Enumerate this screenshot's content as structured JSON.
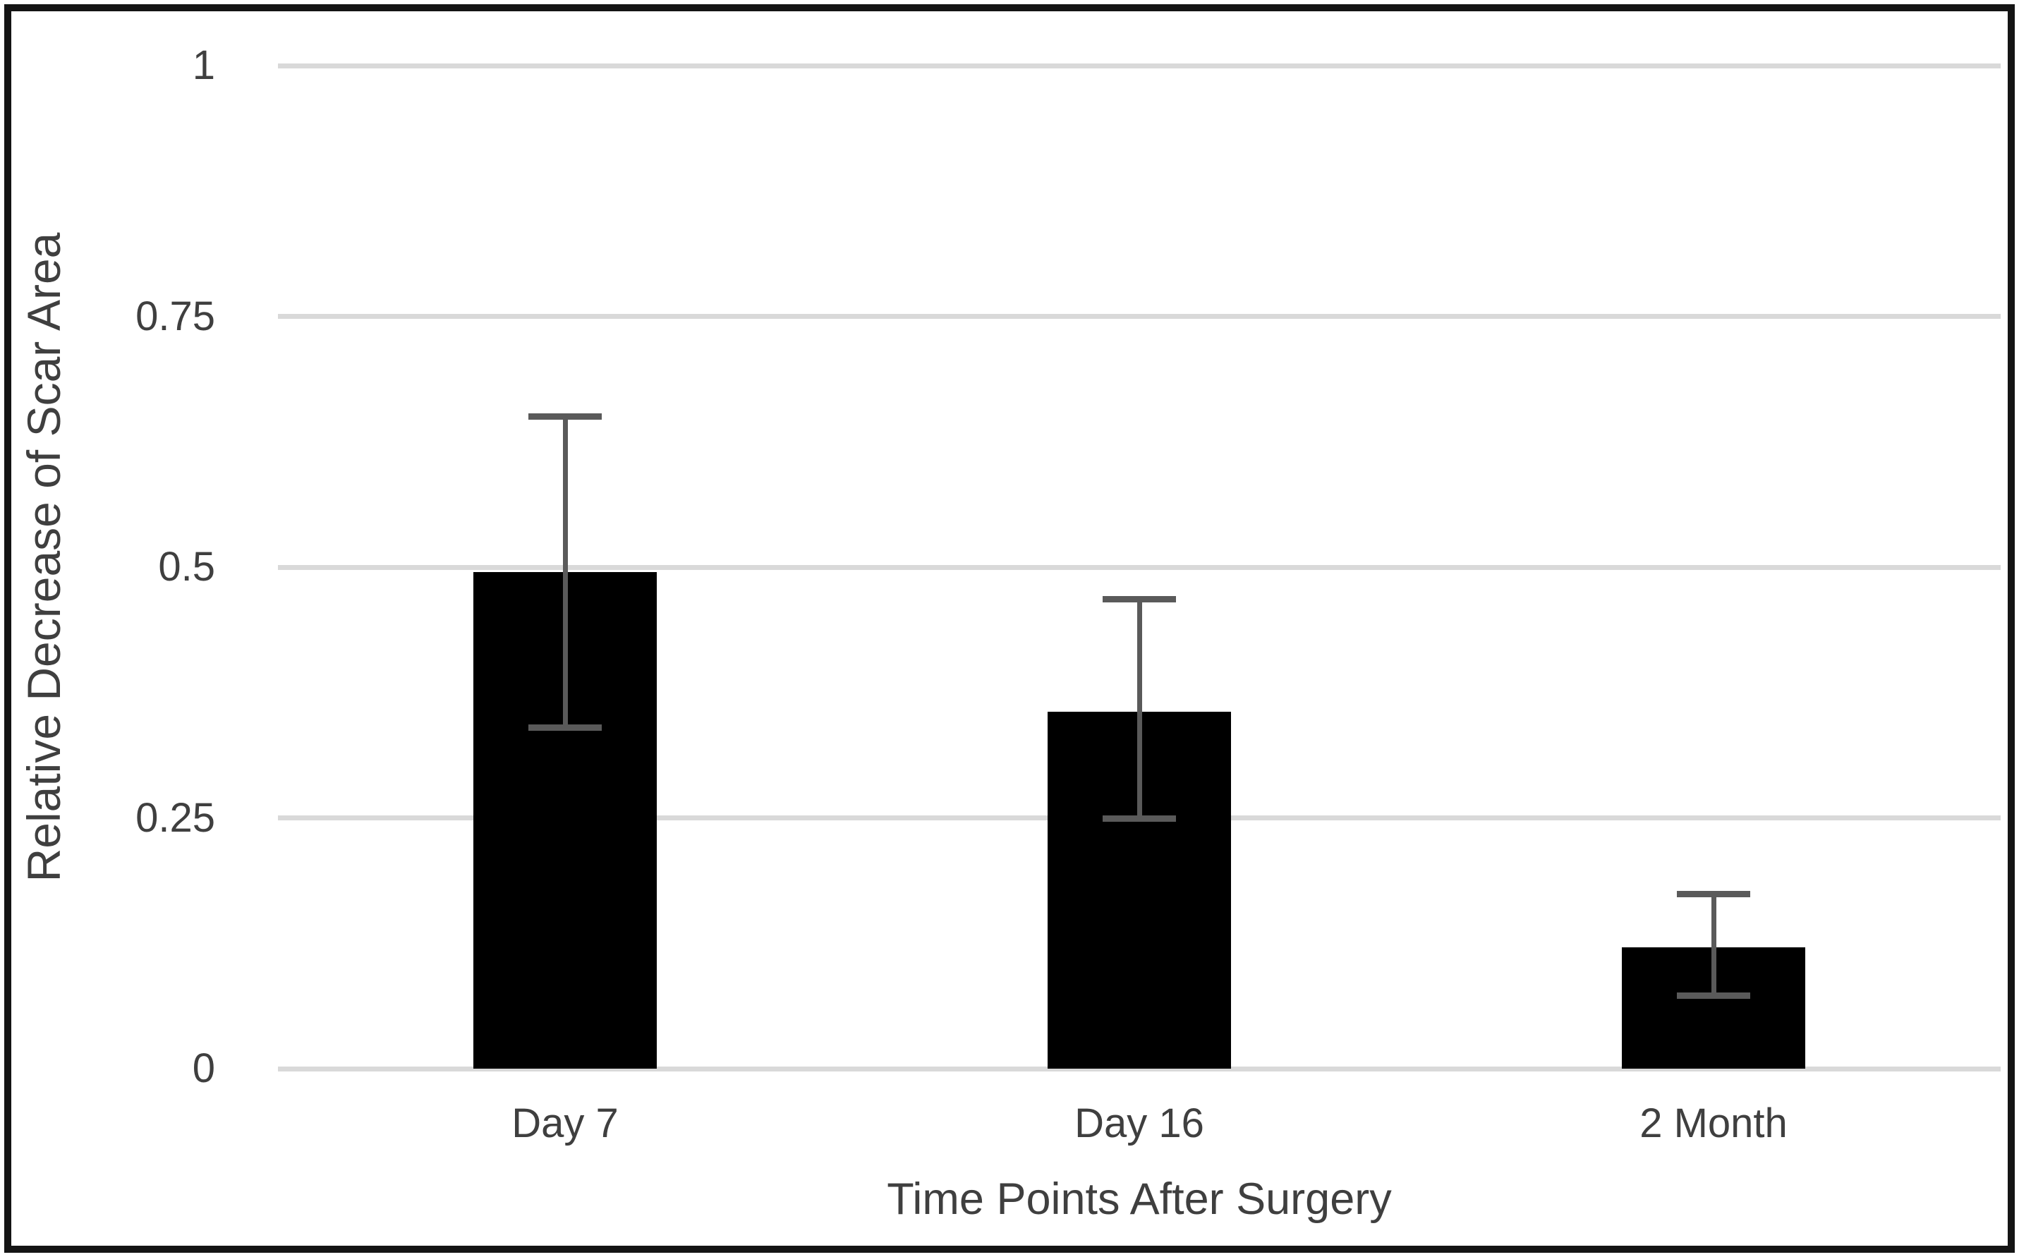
{
  "chart_data": {
    "type": "bar",
    "title": "",
    "xlabel": "Time Points After Surgery",
    "ylabel": "Relative Decrease of Scar Area",
    "categories": [
      "Day 7",
      "Day 16",
      "2 Month"
    ],
    "values": [
      0.495,
      0.356,
      0.121
    ],
    "error_bars": {
      "upper_cap_values": [
        0.65,
        0.468,
        0.174
      ],
      "lower_cap_values": [
        0.34,
        0.249,
        0.073
      ]
    },
    "y_ticks": [
      {
        "label": "1",
        "value": 1
      },
      {
        "label": "0.75",
        "value": 0.75
      },
      {
        "label": "0.5",
        "value": 0.5
      },
      {
        "label": "0.25",
        "value": 0.25
      },
      {
        "label": "0",
        "value": 0
      }
    ],
    "ylim": [
      0,
      1
    ],
    "grid": true,
    "legend": "none",
    "colors": {
      "bar_fill": "#000000",
      "error_bar": "#5a5a5a",
      "gridline": "#d9d9d9",
      "axis_text": "#3f3f3f",
      "figure_border": "#141414",
      "background": "#ffffff"
    }
  }
}
